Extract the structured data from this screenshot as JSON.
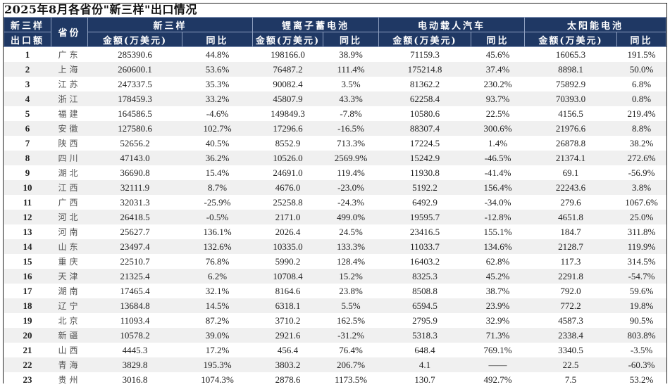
{
  "title": "2025年8月各省份\"新三样\"出口情况",
  "header": {
    "rank_col": [
      "新三样",
      "出口额"
    ],
    "province_col": "省份",
    "groups": [
      "新三样",
      "锂离子蓄电池",
      "电动载人汽车",
      "太阳能电池"
    ],
    "amount_label": "金额(万美元)",
    "yoy_label": "同比"
  },
  "rows": [
    {
      "rank": "1",
      "province": "广东",
      "total": "285390.6",
      "total_yoy": "44.8%",
      "li": "198166.0",
      "li_yoy": "38.9%",
      "ev": "71159.3",
      "ev_yoy": "45.6%",
      "solar": "16065.3",
      "solar_yoy": "191.5%"
    },
    {
      "rank": "2",
      "province": "上海",
      "total": "260600.1",
      "total_yoy": "53.6%",
      "li": "76487.2",
      "li_yoy": "111.4%",
      "ev": "175214.8",
      "ev_yoy": "37.4%",
      "solar": "8898.1",
      "solar_yoy": "50.0%"
    },
    {
      "rank": "3",
      "province": "江苏",
      "total": "247337.5",
      "total_yoy": "35.3%",
      "li": "90082.4",
      "li_yoy": "3.5%",
      "ev": "81362.2",
      "ev_yoy": "230.2%",
      "solar": "75892.9",
      "solar_yoy": "6.8%"
    },
    {
      "rank": "4",
      "province": "浙江",
      "total": "178459.3",
      "total_yoy": "33.2%",
      "li": "45807.9",
      "li_yoy": "43.3%",
      "ev": "62258.4",
      "ev_yoy": "93.7%",
      "solar": "70393.0",
      "solar_yoy": "0.8%"
    },
    {
      "rank": "5",
      "province": "福建",
      "total": "164586.5",
      "total_yoy": "-4.6%",
      "li": "149849.3",
      "li_yoy": "-7.8%",
      "ev": "10580.6",
      "ev_yoy": "22.5%",
      "solar": "4156.5",
      "solar_yoy": "219.4%"
    },
    {
      "rank": "6",
      "province": "安徽",
      "total": "127580.6",
      "total_yoy": "102.7%",
      "li": "17296.6",
      "li_yoy": "-16.5%",
      "ev": "88307.4",
      "ev_yoy": "300.6%",
      "solar": "21976.6",
      "solar_yoy": "8.8%"
    },
    {
      "rank": "7",
      "province": "陕西",
      "total": "52656.2",
      "total_yoy": "40.5%",
      "li": "8552.9",
      "li_yoy": "713.3%",
      "ev": "17224.5",
      "ev_yoy": "1.4%",
      "solar": "26878.8",
      "solar_yoy": "38.2%"
    },
    {
      "rank": "8",
      "province": "四川",
      "total": "47143.0",
      "total_yoy": "36.2%",
      "li": "10526.0",
      "li_yoy": "2569.9%",
      "ev": "15242.9",
      "ev_yoy": "-46.5%",
      "solar": "21374.1",
      "solar_yoy": "272.6%"
    },
    {
      "rank": "9",
      "province": "湖北",
      "total": "36690.8",
      "total_yoy": "15.4%",
      "li": "24691.0",
      "li_yoy": "119.4%",
      "ev": "11930.8",
      "ev_yoy": "-41.4%",
      "solar": "69.1",
      "solar_yoy": "-56.9%"
    },
    {
      "rank": "10",
      "province": "江西",
      "total": "32111.9",
      "total_yoy": "8.7%",
      "li": "4676.0",
      "li_yoy": "-23.0%",
      "ev": "5192.2",
      "ev_yoy": "156.4%",
      "solar": "22243.6",
      "solar_yoy": "3.8%"
    },
    {
      "rank": "11",
      "province": "广西",
      "total": "32031.3",
      "total_yoy": "-25.9%",
      "li": "25258.8",
      "li_yoy": "-24.3%",
      "ev": "6492.9",
      "ev_yoy": "-34.0%",
      "solar": "279.6",
      "solar_yoy": "1067.6%"
    },
    {
      "rank": "12",
      "province": "河北",
      "total": "26418.5",
      "total_yoy": "-0.5%",
      "li": "2171.0",
      "li_yoy": "499.0%",
      "ev": "19595.7",
      "ev_yoy": "-12.8%",
      "solar": "4651.8",
      "solar_yoy": "25.0%"
    },
    {
      "rank": "13",
      "province": "河南",
      "total": "25627.7",
      "total_yoy": "136.1%",
      "li": "2026.4",
      "li_yoy": "24.5%",
      "ev": "23416.5",
      "ev_yoy": "155.1%",
      "solar": "184.7",
      "solar_yoy": "311.8%"
    },
    {
      "rank": "14",
      "province": "山东",
      "total": "23497.4",
      "total_yoy": "132.6%",
      "li": "10335.0",
      "li_yoy": "133.3%",
      "ev": "11033.7",
      "ev_yoy": "134.6%",
      "solar": "2128.7",
      "solar_yoy": "119.9%"
    },
    {
      "rank": "15",
      "province": "重庆",
      "total": "22510.7",
      "total_yoy": "76.8%",
      "li": "5990.2",
      "li_yoy": "128.4%",
      "ev": "16403.2",
      "ev_yoy": "62.8%",
      "solar": "117.3",
      "solar_yoy": "314.5%"
    },
    {
      "rank": "16",
      "province": "天津",
      "total": "21325.4",
      "total_yoy": "6.2%",
      "li": "10708.4",
      "li_yoy": "15.2%",
      "ev": "8325.3",
      "ev_yoy": "45.2%",
      "solar": "2291.8",
      "solar_yoy": "-54.7%"
    },
    {
      "rank": "17",
      "province": "湖南",
      "total": "17465.4",
      "total_yoy": "32.1%",
      "li": "8164.6",
      "li_yoy": "23.8%",
      "ev": "8508.8",
      "ev_yoy": "38.7%",
      "solar": "792.0",
      "solar_yoy": "59.6%"
    },
    {
      "rank": "18",
      "province": "辽宁",
      "total": "13684.8",
      "total_yoy": "14.5%",
      "li": "6318.1",
      "li_yoy": "5.5%",
      "ev": "6594.5",
      "ev_yoy": "23.9%",
      "solar": "772.2",
      "solar_yoy": "19.8%"
    },
    {
      "rank": "19",
      "province": "北京",
      "total": "11093.4",
      "total_yoy": "87.2%",
      "li": "3710.2",
      "li_yoy": "162.5%",
      "ev": "2795.9",
      "ev_yoy": "32.9%",
      "solar": "4587.3",
      "solar_yoy": "90.5%"
    },
    {
      "rank": "20",
      "province": "新疆",
      "total": "10578.2",
      "total_yoy": "39.0%",
      "li": "2921.6",
      "li_yoy": "-31.2%",
      "ev": "5318.3",
      "ev_yoy": "71.3%",
      "solar": "2338.4",
      "solar_yoy": "803.8%"
    },
    {
      "rank": "21",
      "province": "山西",
      "total": "4445.3",
      "total_yoy": "17.2%",
      "li": "456.4",
      "li_yoy": "76.4%",
      "ev": "648.4",
      "ev_yoy": "769.1%",
      "solar": "3340.5",
      "solar_yoy": "-3.5%"
    },
    {
      "rank": "22",
      "province": "青海",
      "total": "3829.8",
      "total_yoy": "195.3%",
      "li": "3803.2",
      "li_yoy": "206.7%",
      "ev": "4.1",
      "ev_yoy": "——",
      "solar": "22.5",
      "solar_yoy": "-60.3%"
    },
    {
      "rank": "23",
      "province": "贵州",
      "total": "3016.8",
      "total_yoy": "1074.3%",
      "li": "2878.6",
      "li_yoy": "1173.5%",
      "ev": "130.7",
      "ev_yoy": "492.7%",
      "solar": "7.5",
      "solar_yoy": "53.2%"
    }
  ],
  "colors": {
    "header_bg": "#1f3864",
    "header_text": "#ffffff",
    "row_alt_bg": "#f0f0f0"
  }
}
